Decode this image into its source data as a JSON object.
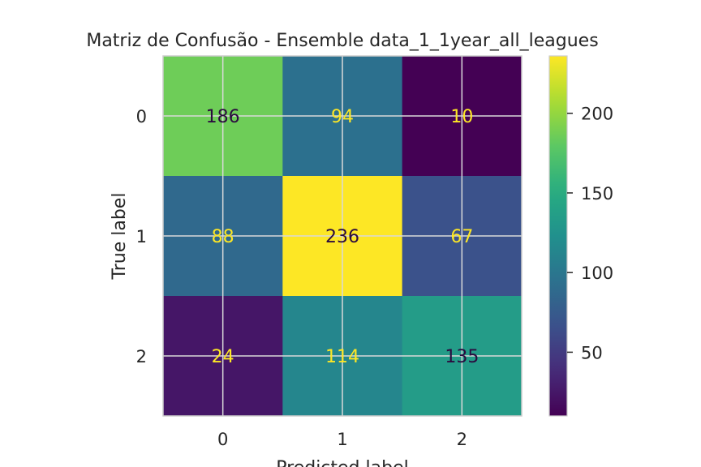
{
  "chart_data": {
    "type": "heatmap",
    "title": "Matriz de Confusão - Ensemble data_1_1year_all_leagues",
    "xlabel": "Predicted label",
    "ylabel": "True label",
    "x_categories": [
      "0",
      "1",
      "2"
    ],
    "y_categories": [
      "0",
      "1",
      "2"
    ],
    "values": [
      [
        186,
        94,
        10
      ],
      [
        88,
        236,
        67
      ],
      [
        24,
        114,
        135
      ]
    ],
    "colormap": "viridis",
    "color_range": [
      10,
      236
    ],
    "colorbar_ticks": [
      "50",
      "100",
      "150",
      "200"
    ],
    "colorbar_tick_values": [
      50,
      100,
      150,
      200
    ],
    "grid": true,
    "text_color_dark": "#2b0b3f",
    "text_color_light": "#fde725"
  }
}
